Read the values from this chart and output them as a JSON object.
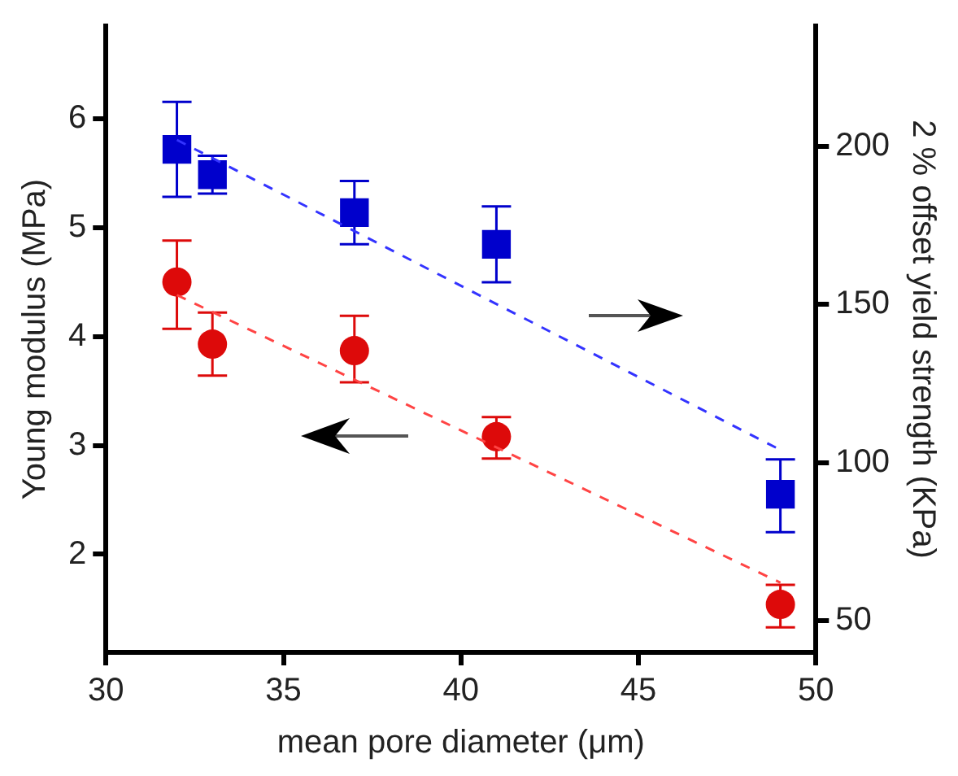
{
  "chart_data": {
    "type": "scatter",
    "xlabel": "mean pore diameter (μm)",
    "ylabel": "Young modulus (MPa)",
    "y2label": "2 % offset yield strength (KPa)",
    "xlim": [
      30,
      50
    ],
    "xticks": [
      30,
      35,
      40,
      45,
      50
    ],
    "ylim": [
      1.1,
      6.85
    ],
    "yticks": [
      2,
      3,
      4,
      5,
      6
    ],
    "y2lim": [
      40,
      238
    ],
    "y2ticks": [
      50,
      100,
      150,
      200
    ],
    "grid": false,
    "legend": false,
    "series": [
      {
        "type": "scatter",
        "color": "#dd0a0a",
        "marker": "circle",
        "x": [
          32,
          33,
          37,
          41,
          49
        ],
        "values": [
          4.5,
          3.93,
          3.87,
          3.08,
          1.54
        ],
        "errors": [
          [
            4.07,
            4.88
          ],
          [
            3.64,
            4.22
          ],
          [
            3.58,
            4.19
          ],
          [
            2.88,
            3.26
          ],
          [
            1.33,
            1.72
          ]
        ]
      },
      {
        "type": "scatter",
        "color": "#0000cc",
        "marker": "square",
        "axis": "y2",
        "x": [
          32,
          33,
          37,
          41,
          49
        ],
        "values": [
          199,
          191,
          179,
          169,
          90
        ],
        "errors": [
          [
            184,
            214
          ],
          [
            185,
            197
          ],
          [
            169,
            189
          ],
          [
            157,
            181
          ],
          [
            78,
            101
          ]
        ]
      },
      {
        "type": "line",
        "color": "#ff4444",
        "line_style": "dashed",
        "marker": "none",
        "x": [
          32,
          49
        ],
        "values": [
          4.38,
          1.74
        ]
      },
      {
        "type": "line",
        "color": "#3333ff",
        "line_style": "dashed",
        "marker": "none",
        "axis": "y2",
        "x": [
          32,
          49
        ],
        "values": [
          202,
          104
        ]
      }
    ]
  }
}
